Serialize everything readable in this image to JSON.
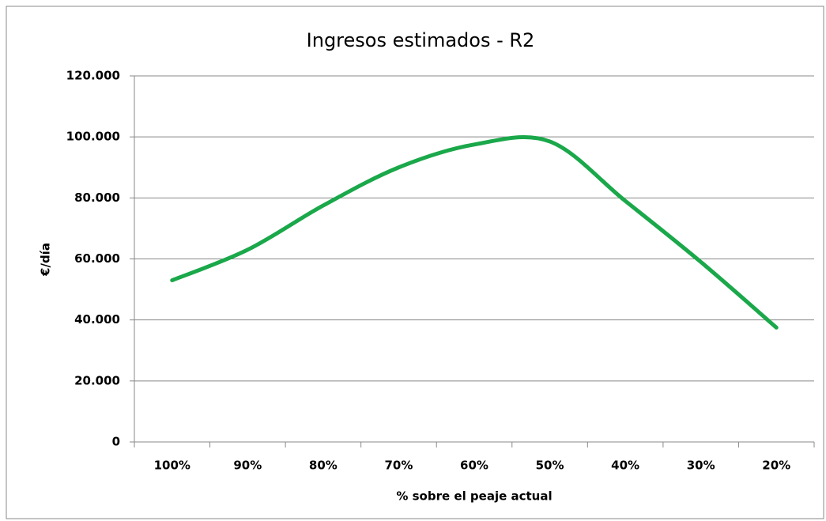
{
  "chart_data": {
    "type": "line",
    "title": "Ingresos estimados - R2",
    "x_label": "% sobre el peaje actual",
    "y_label": "€/día",
    "categories": [
      "100%",
      "90%",
      "80%",
      "70%",
      "60%",
      "50%",
      "40%",
      "30%",
      "20%"
    ],
    "series": [
      {
        "name": "Ingresos",
        "color": "#1aa84a",
        "values": [
          53000,
          63000,
          77500,
          90000,
          97500,
          98500,
          79000,
          59000,
          37500
        ]
      }
    ],
    "ylim": [
      0,
      120000
    ],
    "yticks": [
      0,
      {
        "value": 20000,
        "label": "20.000"
      },
      {
        "value": 40000,
        "label": "40.000"
      },
      {
        "value": 60000,
        "label": "60.000"
      },
      {
        "value": 80000,
        "label": "80.000"
      },
      {
        "value": 100000,
        "label": "100.000"
      },
      {
        "value": 120000,
        "label": "120.000"
      }
    ],
    "grid": true,
    "smooth": true
  }
}
